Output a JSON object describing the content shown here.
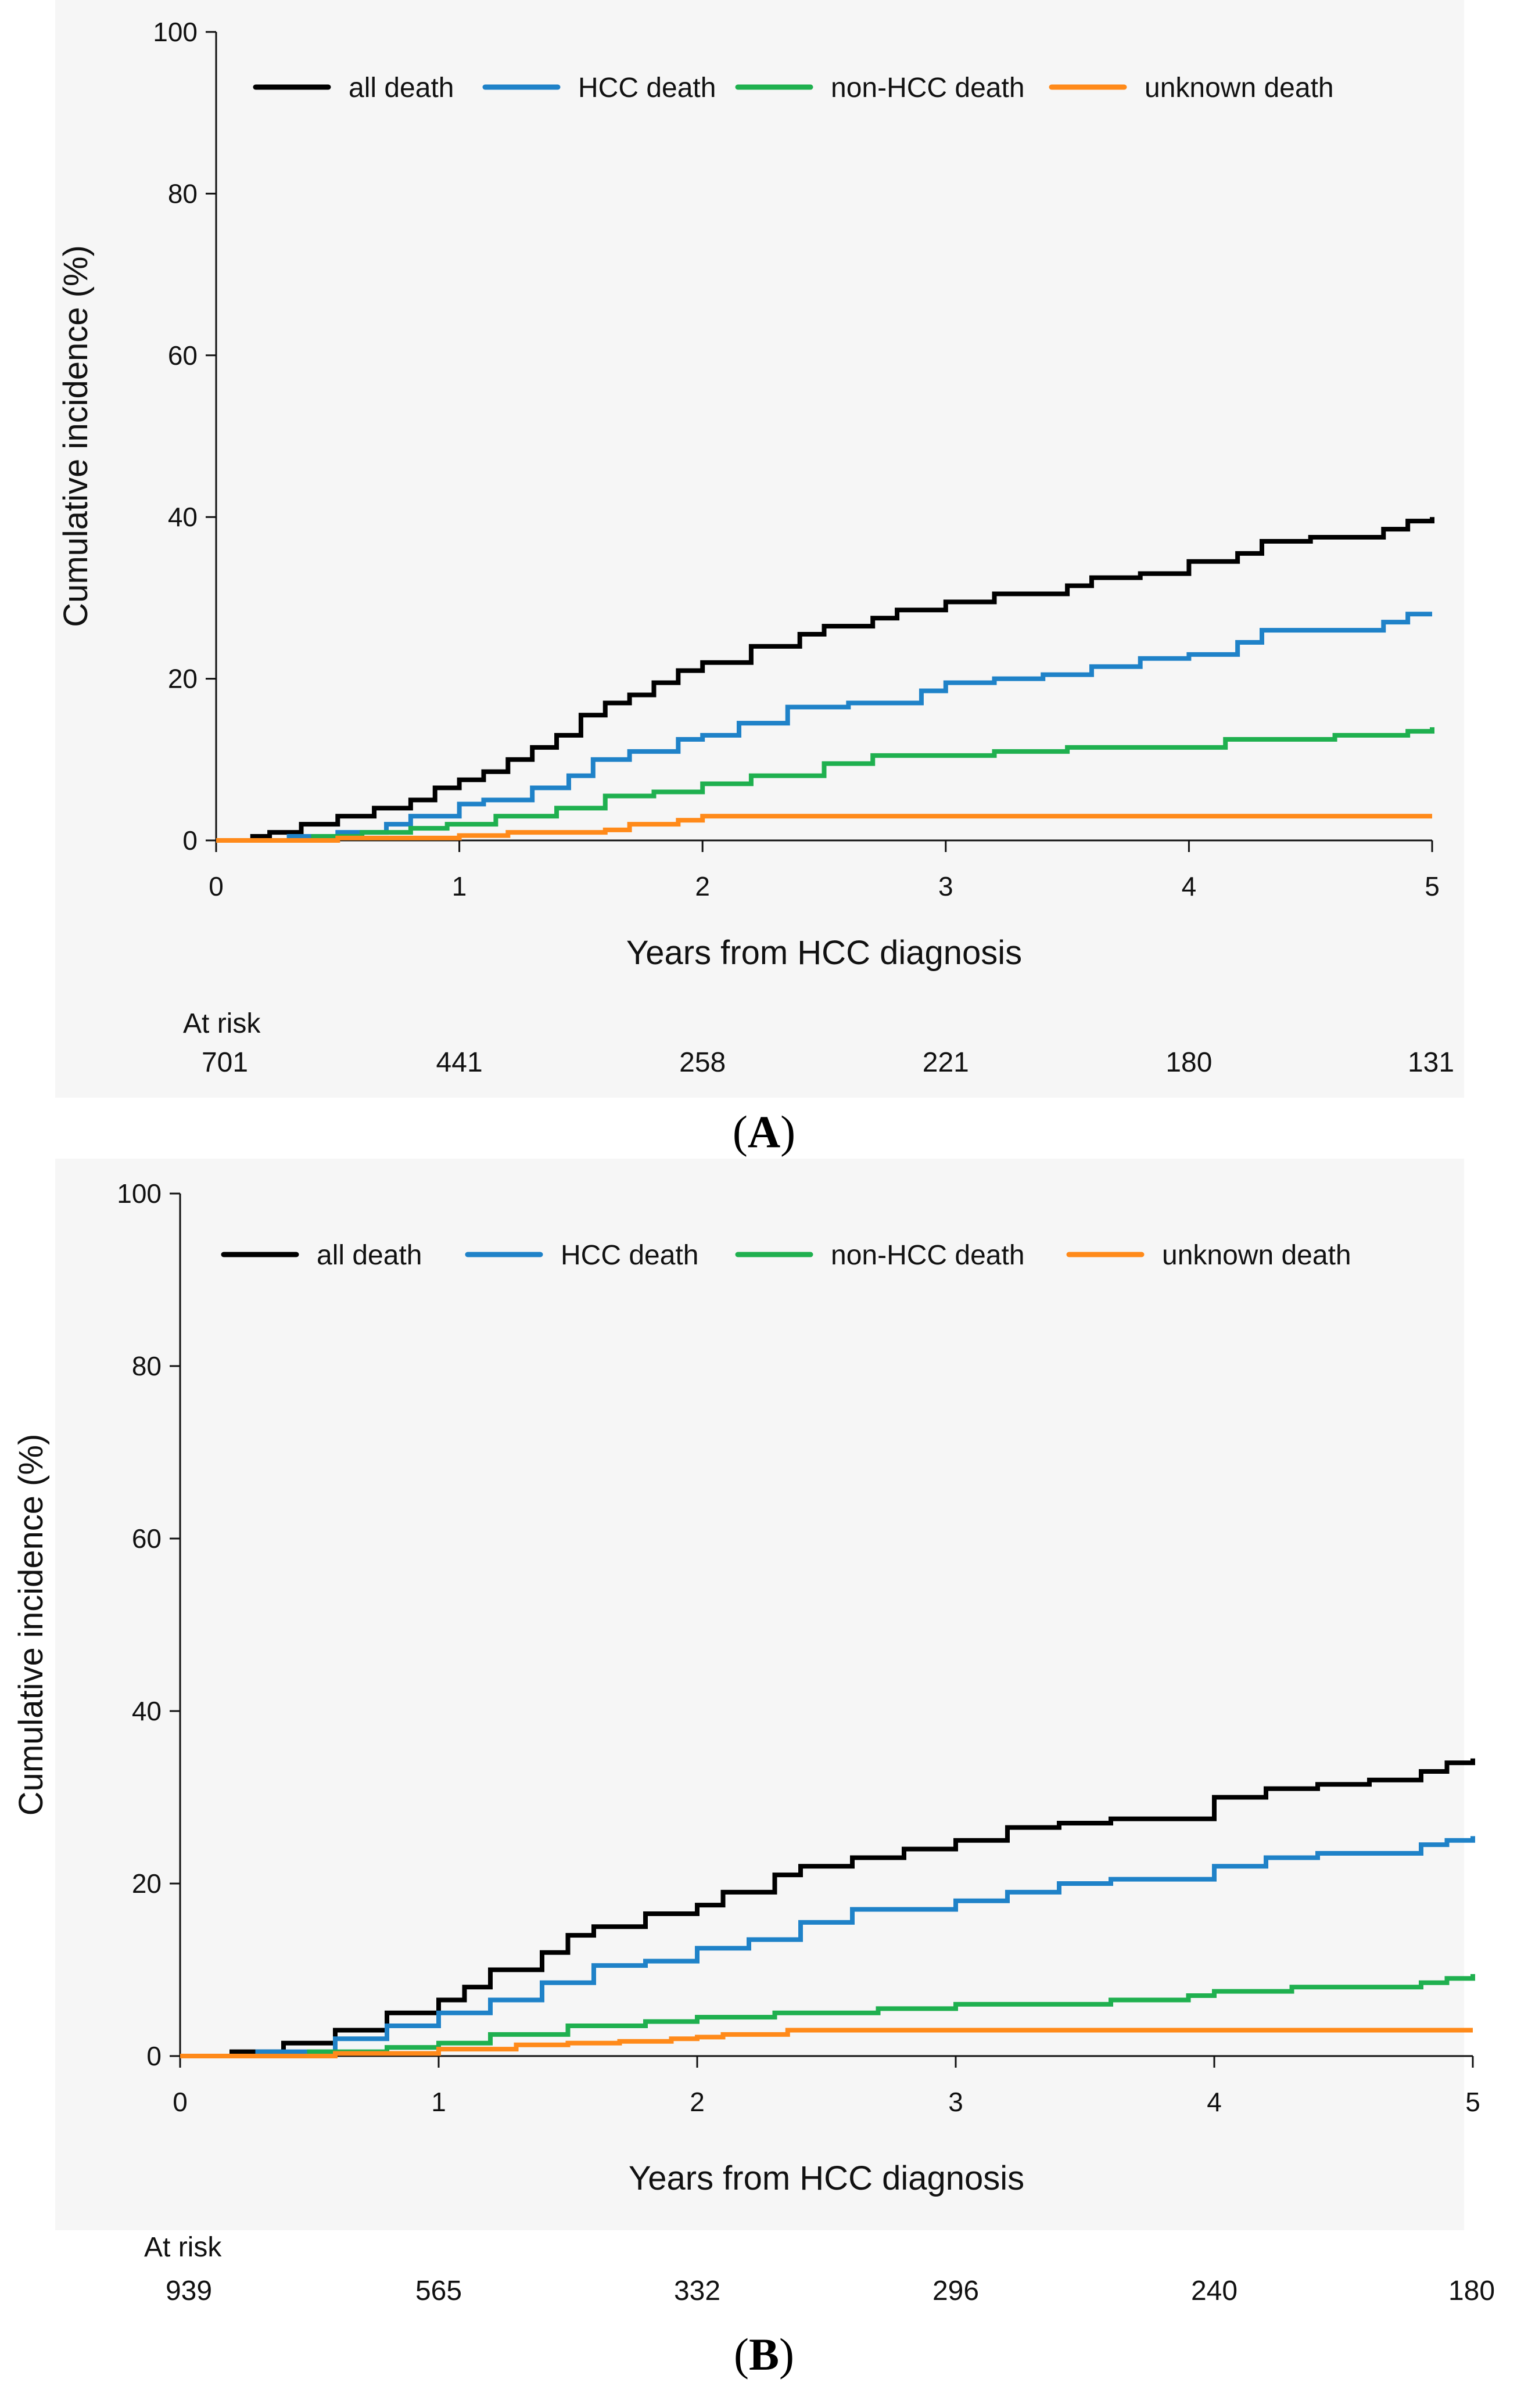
{
  "colors": {
    "all death": "#000000",
    "HCC death": "#1f82c8",
    "non-HCC death": "#1fb04f",
    "unknown death": "#ff8a1a",
    "axis": "#111111",
    "panel_background": "#f6f6f6"
  },
  "chart_data": [
    {
      "type": "line",
      "step": true,
      "panel": "A",
      "panel_label": {
        "open": "(",
        "letter": "A",
        "close": ")"
      },
      "xlabel": "Years from HCC diagnosis",
      "ylabel": "Cumulative incidence (%)",
      "xlim": [
        0,
        5
      ],
      "ylim": [
        0,
        100
      ],
      "x_ticks": [
        0,
        1,
        2,
        3,
        4,
        5
      ],
      "y_ticks": [
        0,
        20,
        40,
        60,
        80,
        100
      ],
      "grid": false,
      "legend": {
        "position": "top",
        "entries": [
          "all death",
          "HCC death",
          "non-HCC death",
          "unknown death"
        ]
      },
      "at_risk": {
        "label": "At risk",
        "x": [
          0,
          1,
          2,
          3,
          4,
          5
        ],
        "values": [
          701,
          441,
          258,
          221,
          180,
          131
        ]
      },
      "series": [
        {
          "name": "all death",
          "x": [
            0,
            0.15,
            0.22,
            0.35,
            0.5,
            0.65,
            0.8,
            0.9,
            1.0,
            1.1,
            1.2,
            1.3,
            1.4,
            1.5,
            1.6,
            1.7,
            1.8,
            1.9,
            2.0,
            2.2,
            2.4,
            2.5,
            2.7,
            2.8,
            3.0,
            3.2,
            3.5,
            3.6,
            3.8,
            4.0,
            4.2,
            4.3,
            4.5,
            4.6,
            4.8,
            4.9,
            5.0
          ],
          "y": [
            0,
            0.5,
            1.0,
            2.0,
            3.0,
            4.0,
            5.0,
            6.5,
            7.5,
            8.5,
            10.0,
            11.5,
            13.0,
            15.5,
            17.0,
            18.0,
            19.5,
            21.0,
            22.0,
            24.0,
            25.5,
            26.5,
            27.5,
            28.5,
            29.5,
            30.5,
            31.5,
            32.5,
            33.0,
            34.5,
            35.5,
            37.0,
            37.5,
            37.5,
            38.5,
            39.5,
            40.0
          ]
        },
        {
          "name": "HCC death",
          "x": [
            0,
            0.3,
            0.5,
            0.7,
            0.8,
            1.0,
            1.1,
            1.3,
            1.45,
            1.55,
            1.7,
            1.9,
            2.0,
            2.15,
            2.35,
            2.6,
            2.9,
            3.0,
            3.2,
            3.4,
            3.6,
            3.8,
            4.0,
            4.2,
            4.3,
            4.6,
            4.8,
            4.9,
            5.0
          ],
          "y": [
            0,
            0.5,
            1.0,
            2.0,
            3.0,
            4.5,
            5.0,
            6.5,
            8.0,
            10.0,
            11.0,
            12.5,
            13.0,
            14.5,
            16.5,
            17.0,
            18.5,
            19.5,
            20.0,
            20.5,
            21.5,
            22.5,
            23.0,
            24.5,
            26.0,
            26.0,
            27.0,
            28.0,
            28.0
          ]
        },
        {
          "name": "non-HCC death",
          "x": [
            0,
            0.4,
            0.6,
            0.8,
            0.95,
            1.15,
            1.4,
            1.6,
            1.8,
            2.0,
            2.2,
            2.5,
            2.7,
            3.0,
            3.2,
            3.5,
            3.7,
            4.0,
            4.15,
            4.3,
            4.6,
            4.9,
            5.0
          ],
          "y": [
            0,
            0.5,
            1.0,
            1.5,
            2.0,
            3.0,
            4.0,
            5.5,
            6.0,
            7.0,
            8.0,
            9.5,
            10.5,
            10.5,
            11.0,
            11.5,
            11.5,
            11.5,
            12.5,
            12.5,
            13.0,
            13.5,
            14.0
          ]
        },
        {
          "name": "unknown death",
          "x": [
            0,
            0.5,
            1.0,
            1.2,
            1.6,
            1.7,
            1.9,
            2.0,
            5.0
          ],
          "y": [
            0,
            0.3,
            0.6,
            1.0,
            1.3,
            2.0,
            2.5,
            3.0,
            3.0
          ]
        }
      ]
    },
    {
      "type": "line",
      "step": true,
      "panel": "B",
      "panel_label": {
        "open": "(",
        "letter": "B",
        "close": ")"
      },
      "xlabel": "Years from HCC diagnosis",
      "ylabel": "Cumulative incidence (%)",
      "xlim": [
        0,
        5
      ],
      "ylim": [
        0,
        100
      ],
      "x_ticks": [
        0,
        1,
        2,
        3,
        4,
        5
      ],
      "y_ticks": [
        0,
        20,
        40,
        60,
        80,
        100
      ],
      "grid": false,
      "legend": {
        "position": "top",
        "entries": [
          "all death",
          "HCC death",
          "non-HCC death",
          "unknown death"
        ]
      },
      "at_risk": {
        "label": "At risk",
        "x": [
          0,
          1,
          2,
          3,
          4,
          5
        ],
        "values": [
          939,
          565,
          332,
          296,
          240,
          180
        ]
      },
      "series": [
        {
          "name": "all death",
          "x": [
            0,
            0.2,
            0.4,
            0.6,
            0.8,
            1.0,
            1.1,
            1.2,
            1.4,
            1.5,
            1.6,
            1.8,
            2.0,
            2.1,
            2.3,
            2.4,
            2.6,
            2.8,
            3.0,
            3.2,
            3.4,
            3.6,
            3.8,
            4.0,
            4.2,
            4.4,
            4.6,
            4.8,
            4.9,
            5.0
          ],
          "y": [
            0,
            0.5,
            1.5,
            3.0,
            5.0,
            6.5,
            8.0,
            10.0,
            12.0,
            14.0,
            15.0,
            16.5,
            17.5,
            19.0,
            21.0,
            22.0,
            23.0,
            24.0,
            25.0,
            26.5,
            27.0,
            27.5,
            27.5,
            30.0,
            31.0,
            31.5,
            32.0,
            33.0,
            34.0,
            34.5
          ]
        },
        {
          "name": "HCC death",
          "x": [
            0,
            0.3,
            0.6,
            0.8,
            1.0,
            1.2,
            1.4,
            1.6,
            1.8,
            2.0,
            2.2,
            2.4,
            2.6,
            2.8,
            3.0,
            3.2,
            3.4,
            3.6,
            3.8,
            4.0,
            4.2,
            4.4,
            4.6,
            4.8,
            4.9,
            5.0
          ],
          "y": [
            0,
            0.5,
            2.0,
            3.5,
            5.0,
            6.5,
            8.5,
            10.5,
            11.0,
            12.5,
            13.5,
            15.5,
            17.0,
            17.0,
            18.0,
            19.0,
            20.0,
            20.5,
            20.5,
            22.0,
            23.0,
            23.5,
            23.5,
            24.5,
            25.0,
            25.5
          ]
        },
        {
          "name": "non-HCC death",
          "x": [
            0,
            0.5,
            0.8,
            1.0,
            1.2,
            1.5,
            1.8,
            2.0,
            2.3,
            2.5,
            2.7,
            3.0,
            3.3,
            3.6,
            3.9,
            4.0,
            4.3,
            4.6,
            4.8,
            4.9,
            5.0
          ],
          "y": [
            0,
            0.5,
            1.0,
            1.5,
            2.5,
            3.5,
            4.0,
            4.5,
            5.0,
            5.0,
            5.5,
            6.0,
            6.0,
            6.5,
            7.0,
            7.5,
            8.0,
            8.0,
            8.5,
            9.0,
            9.5
          ]
        },
        {
          "name": "unknown death",
          "x": [
            0,
            0.6,
            1.0,
            1.3,
            1.5,
            1.7,
            1.9,
            2.0,
            2.1,
            2.35,
            5.0
          ],
          "y": [
            0,
            0.3,
            0.8,
            1.3,
            1.5,
            1.7,
            2.0,
            2.2,
            2.5,
            3.0,
            3.0
          ]
        }
      ]
    }
  ]
}
